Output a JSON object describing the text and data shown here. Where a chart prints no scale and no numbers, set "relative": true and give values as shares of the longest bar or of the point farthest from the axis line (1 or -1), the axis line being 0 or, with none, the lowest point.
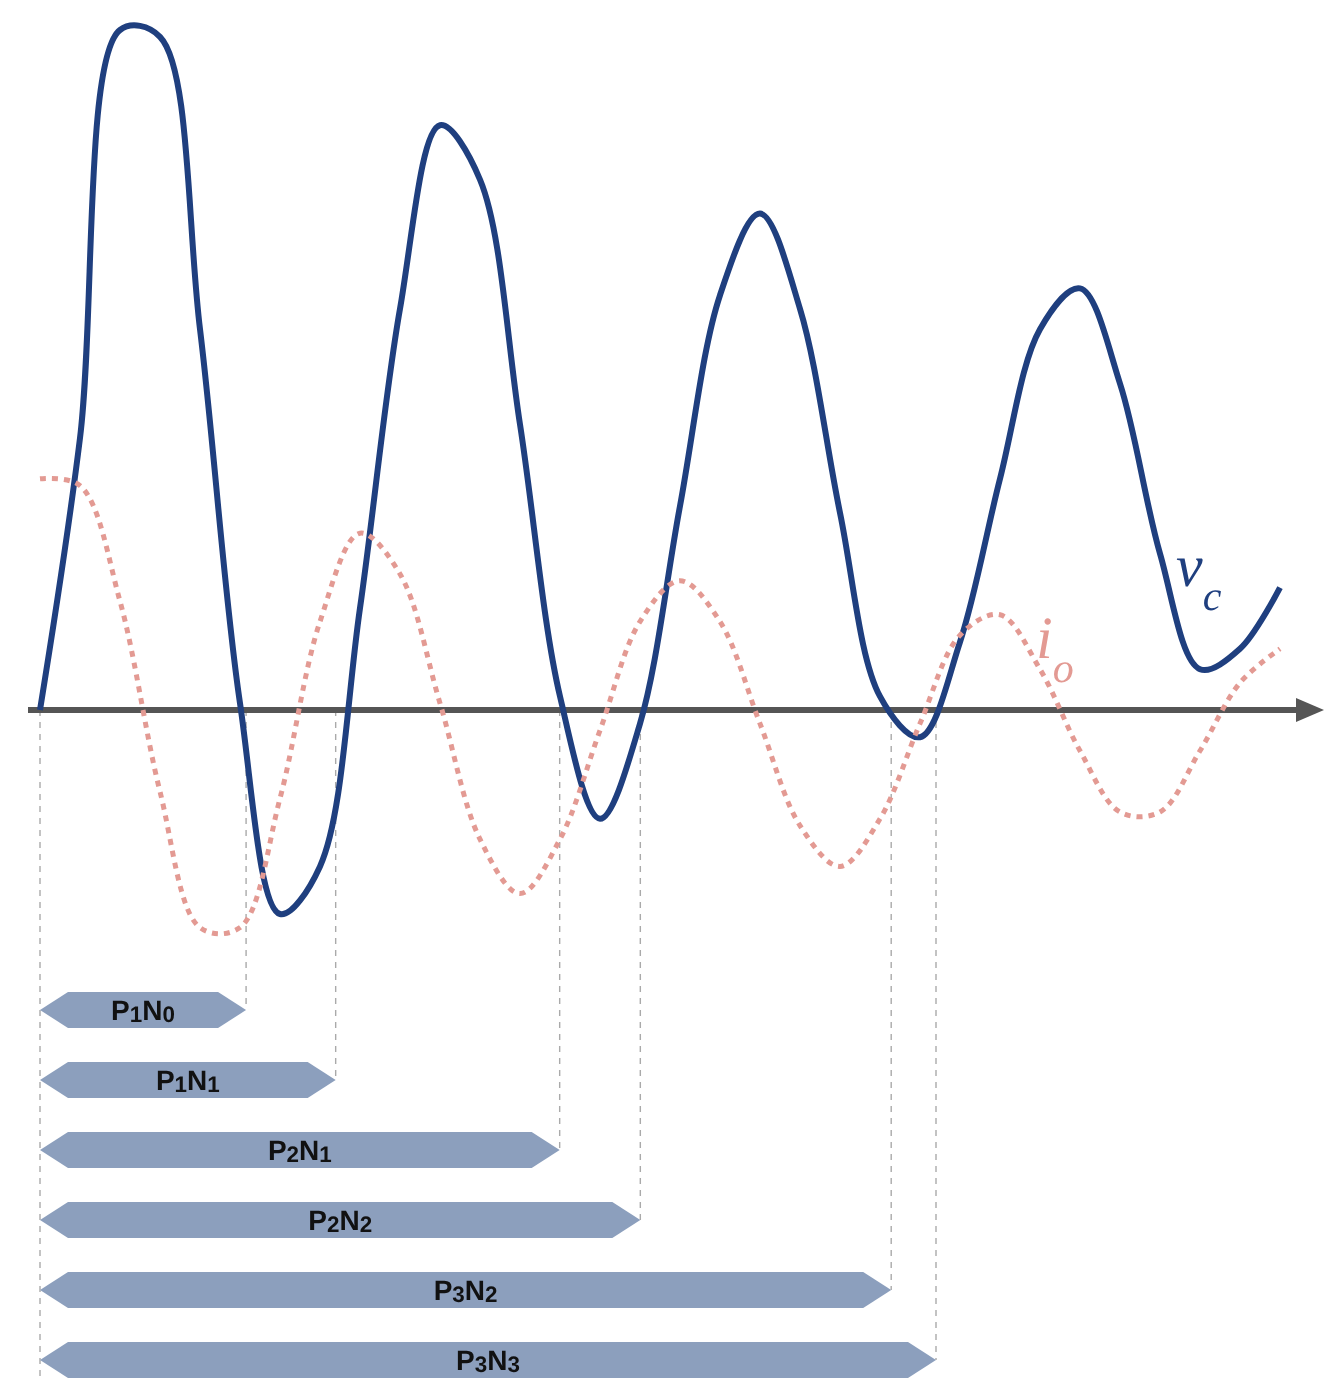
{
  "chart_data": [
    {
      "type": "line",
      "relative": true,
      "categories": [
        null,
        null,
        null,
        null,
        null,
        null,
        null,
        null,
        null,
        null,
        null,
        null,
        null,
        null,
        null,
        null,
        null,
        null,
        null,
        null,
        null,
        null,
        null,
        null,
        null,
        null,
        null,
        null,
        null,
        null,
        null,
        null
      ],
      "series": [
        {
          "name": "v$_{c}$",
          "color": "#1f3f7f",
          "line_style": "solid",
          "values": [
            0,
            0.4,
            1,
            0.99,
            0.56,
            0.01,
            -0.3,
            -0.23,
            0.15,
            0.59,
            0.86,
            0.78,
            0.42,
            0.02,
            -0.16,
            -0.02,
            0.3,
            0.61,
            0.73,
            0.59,
            0.29,
            0.02,
            -0.04,
            0.1,
            0.34,
            0.56,
            0.62,
            0.48,
            0.23,
            0.06,
            0.09,
            0.18
          ]
        },
        {
          "name": "i$_{o}$",
          "color": "#e39a93",
          "line_style": "dotted",
          "values": [
            0.34,
            0.33,
            0.16,
            -0.12,
            -0.32,
            -0.32,
            -0.13,
            0.13,
            0.26,
            0.2,
            0.01,
            -0.19,
            -0.27,
            -0.19,
            -0.03,
            0.13,
            0.19,
            0.13,
            -0.02,
            -0.17,
            -0.23,
            -0.16,
            -0.02,
            0.11,
            0.14,
            0.06,
            -0.06,
            -0.15,
            -0.15,
            -0.06,
            0.04,
            0.09
          ]
        }
      ]
    },
    {
      "type": "bar",
      "orientation": "horizontal",
      "relative": true,
      "color": "#8c9fbd",
      "categories": [
        "P$_{1}$N$_{0}$",
        "P$_{1}$N$_{1}$",
        "P$_{2}$N$_{1}$",
        "P$_{2}$N$_{2}$",
        "P$_{3}$N$_{2}$",
        "P$_{3}$N$_{3}$"
      ],
      "values": [
        0.23,
        0.33,
        0.58,
        0.67,
        0.95,
        1
      ]
    }
  ]
}
